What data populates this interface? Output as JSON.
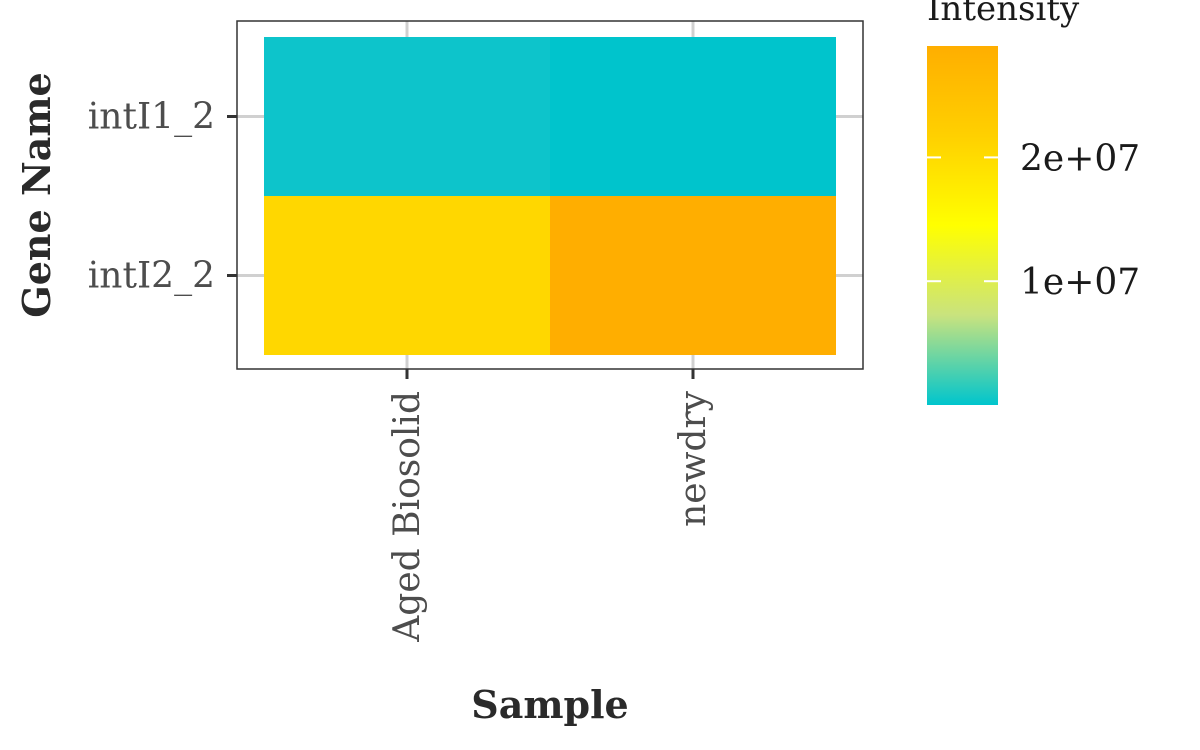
{
  "chart_data": {
    "type": "heatmap",
    "xlabel": "Sample",
    "ylabel": "Gene Name",
    "x_categories": [
      "Aged Biosolid",
      "newdry"
    ],
    "y_categories": [
      "intI1_2",
      "intI2_2"
    ],
    "cells": [
      {
        "x": "Aged Biosolid",
        "y": "intI1_2",
        "value": 300000,
        "color": "#0DC4CB"
      },
      {
        "x": "newdry",
        "y": "intI1_2",
        "value": 100000,
        "color": "#00C4CC"
      },
      {
        "x": "Aged Biosolid",
        "y": "intI2_2",
        "value": 23500000,
        "color": "#FFD700"
      },
      {
        "x": "newdry",
        "y": "intI2_2",
        "value": 28500000,
        "color": "#FFAE00"
      }
    ],
    "grid": true,
    "legend": {
      "title": "Intensity",
      "position": "right",
      "range": [
        0,
        29000000
      ],
      "ticks": [
        {
          "value": 10000000,
          "label": "1e+07"
        },
        {
          "value": 20000000,
          "label": "2e+07"
        }
      ],
      "colors": [
        "#00C5CD",
        "#C9E37E",
        "#FFFF00",
        "#FFD000",
        "#FFAE00"
      ]
    }
  }
}
